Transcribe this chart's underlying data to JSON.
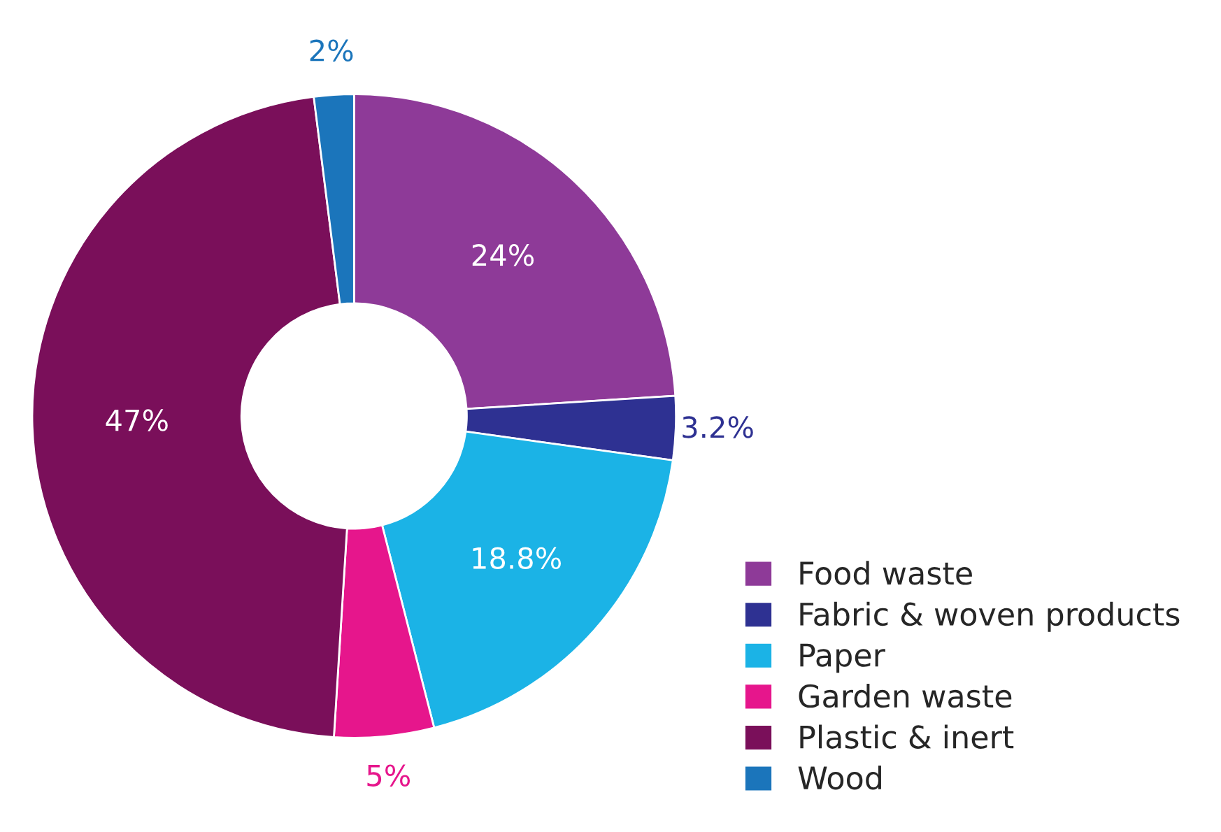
{
  "chart_data": {
    "type": "donut",
    "categories": [
      "Food waste",
      "Fabric & woven products",
      "Paper",
      "Garden waste",
      "Plastic & inert",
      "Wood"
    ],
    "values": [
      24,
      3.2,
      18.8,
      5,
      47,
      2
    ],
    "value_labels": [
      "24%",
      "3.2%",
      "18.8%",
      "5%",
      "47%",
      "2%"
    ],
    "colors": [
      "#8e3a98",
      "#2e3192",
      "#1bb3e6",
      "#e6168c",
      "#7a0f5a",
      "#1b75bb"
    ],
    "legend": "bottom right"
  }
}
